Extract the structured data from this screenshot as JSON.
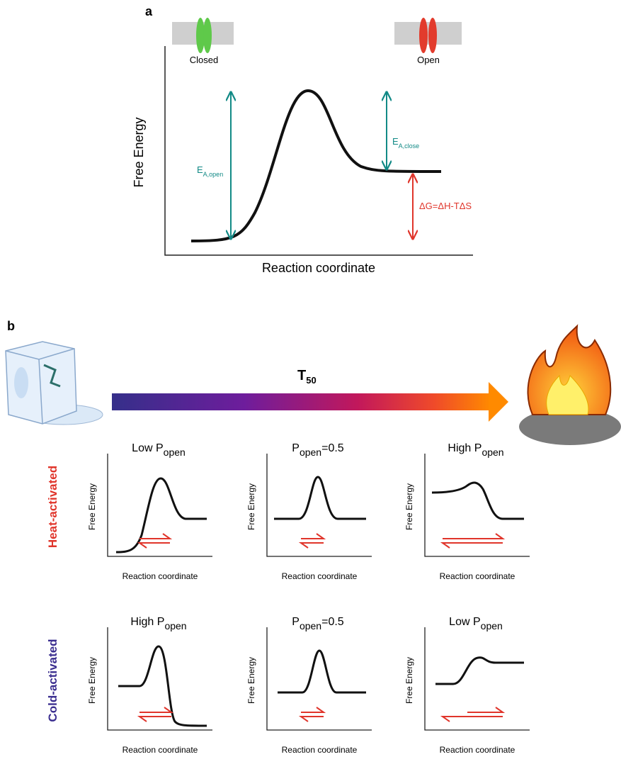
{
  "panel_a": {
    "label": "a",
    "states": [
      {
        "label": "Closed"
      },
      {
        "label": "Open"
      }
    ],
    "y_label": "Free Energy",
    "x_label": "Reaction coordinate",
    "barrier_open": {
      "main": "E",
      "sub": "A,open"
    },
    "barrier_close": {
      "main": "E",
      "sub": "A,close"
    },
    "delta_g": "ΔG=ΔH-TΔS"
  },
  "panel_b": {
    "label": "b",
    "gradient_label": {
      "main": "T",
      "sub": "50"
    },
    "rows": [
      {
        "label": "Heat-activated",
        "plots": [
          {
            "prefix": "Low",
            "symbol": "P",
            "sub": "open",
            "y_label": "Free Energy",
            "x_label": "Reaction coordinate"
          },
          {
            "symbol": "P",
            "sub": "open",
            "suffix": "=0.5",
            "y_label": "Free Energy",
            "x_label": "Reaction coordinate"
          },
          {
            "prefix": "High",
            "symbol": "P",
            "sub": "open",
            "y_label": "Free Energy",
            "x_label": "Reaction coordinate"
          }
        ]
      },
      {
        "label": "Cold-activated",
        "plots": [
          {
            "prefix": "High",
            "symbol": "P",
            "sub": "open",
            "y_label": "Free Energy",
            "x_label": "Reaction coordinate"
          },
          {
            "symbol": "P",
            "sub": "open",
            "suffix": "=0.5",
            "y_label": "Free Energy",
            "x_label": "Reaction coordinate"
          },
          {
            "prefix": "Low",
            "symbol": "P",
            "sub": "open",
            "y_label": "Free Energy",
            "x_label": "Reaction coordinate"
          }
        ]
      }
    ]
  }
}
